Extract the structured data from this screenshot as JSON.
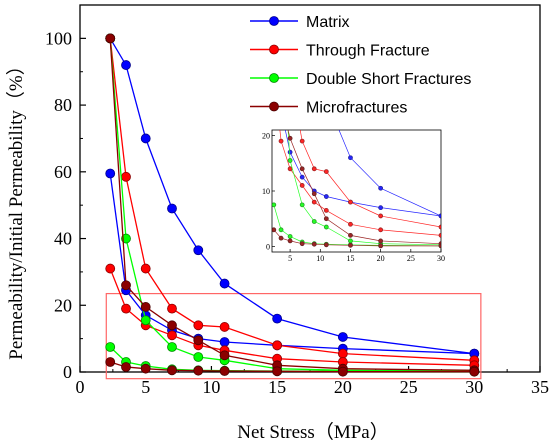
{
  "chart_data": {
    "type": "line",
    "xlabel": "Net Stress（MPa）",
    "ylabel": "Permeability/Initial Permeability（%）",
    "xlim": [
      0,
      35
    ],
    "ylim": [
      0,
      110
    ],
    "xticks": [
      0,
      5,
      10,
      15,
      20,
      25,
      30,
      35
    ],
    "yticks": [
      0,
      20,
      40,
      60,
      80,
      100
    ],
    "legend_position": "top-center",
    "grid": false,
    "series": [
      {
        "name": "Matrix",
        "color": "#0000ff",
        "curves": [
          {
            "x": [
              2.3,
              3.5,
              5,
              7,
              9,
              11,
              15,
              20,
              30
            ],
            "y": [
              100,
              92,
              70,
              49,
              36.5,
              26.5,
              16,
              10.5,
              5.5
            ]
          },
          {
            "x": [
              2.3,
              3.5,
              5,
              7,
              9,
              11,
              15,
              20,
              30
            ],
            "y": [
              59.5,
              24.5,
              17,
              12.5,
              10,
              9,
              8,
              7,
              5.5
            ]
          }
        ]
      },
      {
        "name": "Through Fracture",
        "color": "#ff0000",
        "curves": [
          {
            "x": [
              2.3,
              3.5,
              5,
              7,
              9,
              11,
              15,
              20,
              30
            ],
            "y": [
              100,
              58.5,
              31,
              19,
              14,
              13.5,
              8,
              5.5,
              3.5
            ]
          },
          {
            "x": [
              2.3,
              3.5,
              5,
              7,
              9,
              11,
              15,
              20,
              30
            ],
            "y": [
              31,
              19,
              14,
              11,
              8,
              6.5,
              4,
              3,
              2
            ]
          }
        ]
      },
      {
        "name": "Double Short Fractures",
        "color": "#00ff00",
        "curves": [
          {
            "x": [
              2.3,
              3.5,
              5,
              7,
              9,
              11,
              15,
              20,
              30
            ],
            "y": [
              100,
              40,
              15.5,
              7.5,
              4.5,
              3.5,
              1,
              0.5,
              0.3
            ]
          },
          {
            "x": [
              2.3,
              3.5,
              5,
              7,
              9,
              11,
              15,
              20,
              30
            ],
            "y": [
              7.5,
              3,
              1.8,
              0.8,
              0.5,
              0.4,
              0.3,
              0.2,
              0.1
            ]
          }
        ]
      },
      {
        "name": "Microfractures",
        "color": "#8b0000",
        "curves": [
          {
            "x": [
              2.3,
              3.5,
              5,
              7,
              9,
              11,
              15,
              20,
              30
            ],
            "y": [
              100,
              26,
              19.5,
              14,
              9.5,
              5,
              2,
              1,
              0.5
            ]
          },
          {
            "x": [
              2.3,
              3.5,
              5,
              7,
              9,
              11,
              15,
              20,
              30
            ],
            "y": [
              3,
              1.5,
              1,
              0.5,
              0.4,
              0.3,
              0.2,
              0.1,
              0.1
            ]
          }
        ]
      }
    ],
    "inset": {
      "xlim": [
        2,
        30
      ],
      "ylim": [
        -1,
        21
      ],
      "xticks": [
        5,
        10,
        15,
        20,
        25,
        30
      ],
      "yticks": [
        0,
        10,
        20
      ]
    },
    "highlight_box": {
      "x": [
        2,
        30.5
      ],
      "y": [
        -2,
        23.5
      ],
      "color": "#ff6666"
    }
  }
}
